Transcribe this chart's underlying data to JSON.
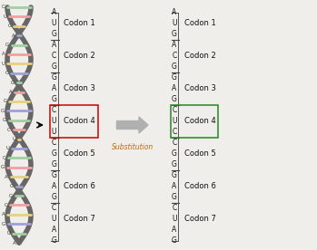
{
  "bg_color": "#f0eeea",
  "left_seq": [
    "A",
    "U",
    "G",
    "A",
    "C",
    "G",
    "G",
    "A",
    "G",
    "C",
    "U",
    "U",
    "C",
    "G",
    "G",
    "G",
    "A",
    "G",
    "C",
    "U",
    "A",
    "G"
  ],
  "right_seq": [
    "A",
    "U",
    "G",
    "A",
    "C",
    "G",
    "G",
    "A",
    "G",
    "C",
    "U",
    "C",
    "C",
    "G",
    "G",
    "G",
    "A",
    "G",
    "C",
    "U",
    "A",
    "G"
  ],
  "codon_labels": [
    "Codon 1",
    "Codon 2",
    "Codon 3",
    "Codon 4",
    "Codon 5",
    "Codon 6",
    "Codon 7"
  ],
  "codon4_box_left_color": "#cc0000",
  "codon4_box_right_color": "#228822",
  "substitution_text": "Substitution",
  "substitution_color": "#cc6600",
  "text_color": "#111111",
  "seq_font_size": 5.5,
  "codon_font_size": 6.0,
  "helix_color": "#666666",
  "base_colors": [
    "#f4a0a0",
    "#a0d0a0",
    "#a0a0d8",
    "#e8d080",
    "#f4a0a0",
    "#a0d0a0",
    "#a0a0d8",
    "#e8d080"
  ]
}
